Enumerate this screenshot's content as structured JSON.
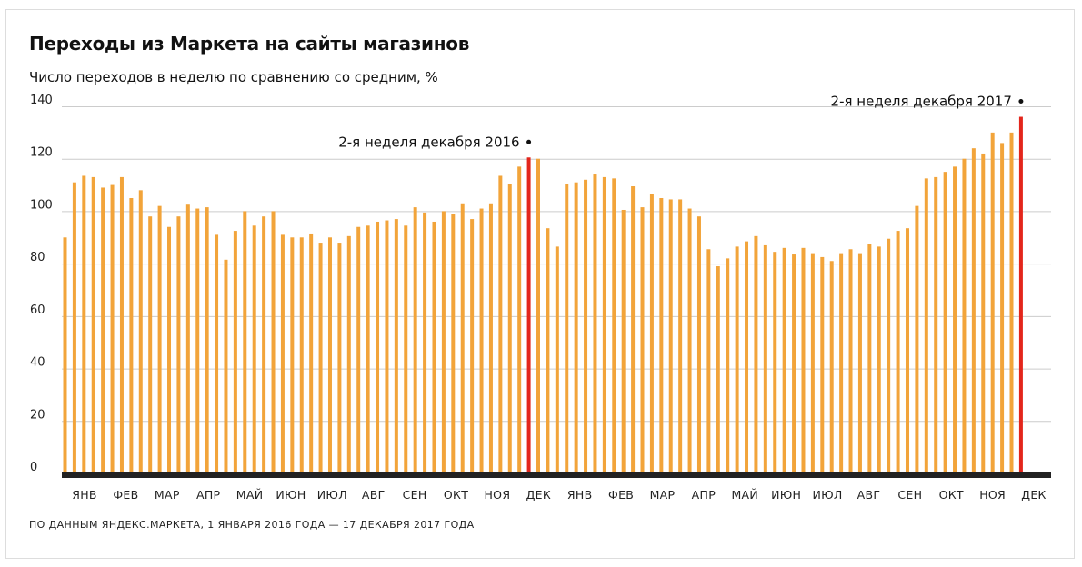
{
  "header": {
    "title": "Переходы из Маркета на сайты магазинов",
    "subtitle": "Число переходов в неделю по сравнению со средним, %"
  },
  "footer": {
    "source": "ПО ДАННЫМ ЯНДЕКС.МАРКЕТА, 1 ЯНВАРЯ 2016 ГОДА — 17 ДЕКАБРЯ 2017 ГОДА"
  },
  "colors": {
    "bar": "#f2a43a",
    "highlight": "#e3261c",
    "baseline": "#222222",
    "grid": "#cccccc"
  },
  "chart_data": {
    "type": "bar",
    "title": "Переходы из Маркета на сайты магазинов",
    "ylabel": "Число переходов в неделю по сравнению со средним, %",
    "ylim": [
      0,
      140
    ],
    "yticks": [
      0,
      20,
      40,
      60,
      80,
      100,
      120,
      140
    ],
    "grid": true,
    "month_labels": [
      "ЯНВ",
      "ФЕВ",
      "МАР",
      "АПР",
      "МАЙ",
      "ИЮН",
      "ИЮЛ",
      "АВГ",
      "СЕН",
      "ОКТ",
      "НОЯ",
      "ДЕК",
      "ЯНВ",
      "ФЕВ",
      "МАР",
      "АПР",
      "МАЙ",
      "ИЮН",
      "ИЮЛ",
      "АВГ",
      "СЕН",
      "ОКТ",
      "НОЯ",
      "ДЕК"
    ],
    "values": [
      90,
      111,
      113.5,
      113,
      109,
      110,
      113,
      105,
      108,
      98,
      102,
      94,
      98,
      102.5,
      101,
      101.5,
      91,
      81.5,
      92.5,
      100,
      94.5,
      98,
      100,
      91,
      90,
      90,
      91.5,
      88,
      90,
      88,
      90.5,
      94,
      94.5,
      96,
      96.5,
      97,
      94.5,
      101.5,
      99.5,
      96,
      100,
      99,
      103,
      97,
      101,
      103,
      113.5,
      110.5,
      117,
      120.5,
      120,
      93.5,
      86.5,
      110.5,
      111,
      112,
      114,
      113,
      112.5,
      100.5,
      109.5,
      101.5,
      106.5,
      105,
      104.5,
      104.5,
      101,
      98,
      85.5,
      79,
      82,
      86.5,
      88.5,
      90.5,
      87,
      84.5,
      86,
      83.5,
      86,
      84,
      82.5,
      81,
      84,
      85.5,
      84,
      87.5,
      86.5,
      89.5,
      92.5,
      93.5,
      102,
      112.5,
      113,
      115,
      117,
      120,
      124,
      122,
      130,
      126,
      130,
      136
    ],
    "highlight": [
      49,
      101
    ],
    "annotations": [
      {
        "text": "2-я неделя декабря 2016",
        "bar_index": 49
      },
      {
        "text": "2-я неделя декабря 2017",
        "bar_index": 101
      }
    ]
  }
}
